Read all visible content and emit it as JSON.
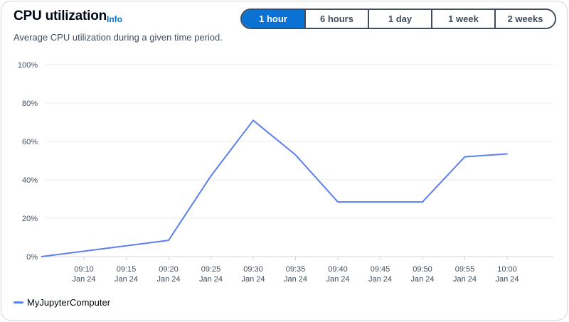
{
  "header": {
    "title": "CPU utilization",
    "info_label": "Info",
    "subtitle": "Average CPU utilization during a given time period."
  },
  "time_ranges": [
    {
      "label": "1 hour",
      "active": true
    },
    {
      "label": "6 hours",
      "active": false
    },
    {
      "label": "1 day",
      "active": false
    },
    {
      "label": "1 week",
      "active": false
    },
    {
      "label": "2 weeks",
      "active": false
    }
  ],
  "colors": {
    "series": "#5c7fec",
    "accent": "#0972d3",
    "grid": "#e9ebed",
    "axis": "#d1d5db"
  },
  "legend": {
    "series_name": "MyJupyterComputer"
  },
  "chart_data": {
    "type": "line",
    "title": "",
    "xlabel": "",
    "ylabel": "",
    "ylim": [
      0,
      100
    ],
    "y_ticks": [
      "0%",
      "20%",
      "40%",
      "60%",
      "80%",
      "100%"
    ],
    "y_tick_values": [
      0,
      20,
      40,
      60,
      80,
      100
    ],
    "x_ticks": [
      {
        "time": "09:10",
        "date": "Jan 24"
      },
      {
        "time": "09:15",
        "date": "Jan 24"
      },
      {
        "time": "09:20",
        "date": "Jan 24"
      },
      {
        "time": "09:25",
        "date": "Jan 24"
      },
      {
        "time": "09:30",
        "date": "Jan 24"
      },
      {
        "time": "09:35",
        "date": "Jan 24"
      },
      {
        "time": "09:40",
        "date": "Jan 24"
      },
      {
        "time": "09:45",
        "date": "Jan 24"
      },
      {
        "time": "09:50",
        "date": "Jan 24"
      },
      {
        "time": "09:55",
        "date": "Jan 24"
      },
      {
        "time": "10:00",
        "date": "Jan 24"
      }
    ],
    "grid": true,
    "legend_position": "bottom-left",
    "series": [
      {
        "name": "MyJupyterComputer",
        "points": [
          {
            "x": "09:05",
            "y": 0
          },
          {
            "x": "09:20",
            "y": 8.5
          },
          {
            "x": "09:25",
            "y": 42
          },
          {
            "x": "09:30",
            "y": 71
          },
          {
            "x": "09:35",
            "y": 53
          },
          {
            "x": "09:40",
            "y": 28.5
          },
          {
            "x": "09:50",
            "y": 28.5
          },
          {
            "x": "09:55",
            "y": 52
          },
          {
            "x": "10:00",
            "y": 53.5
          }
        ]
      }
    ]
  }
}
